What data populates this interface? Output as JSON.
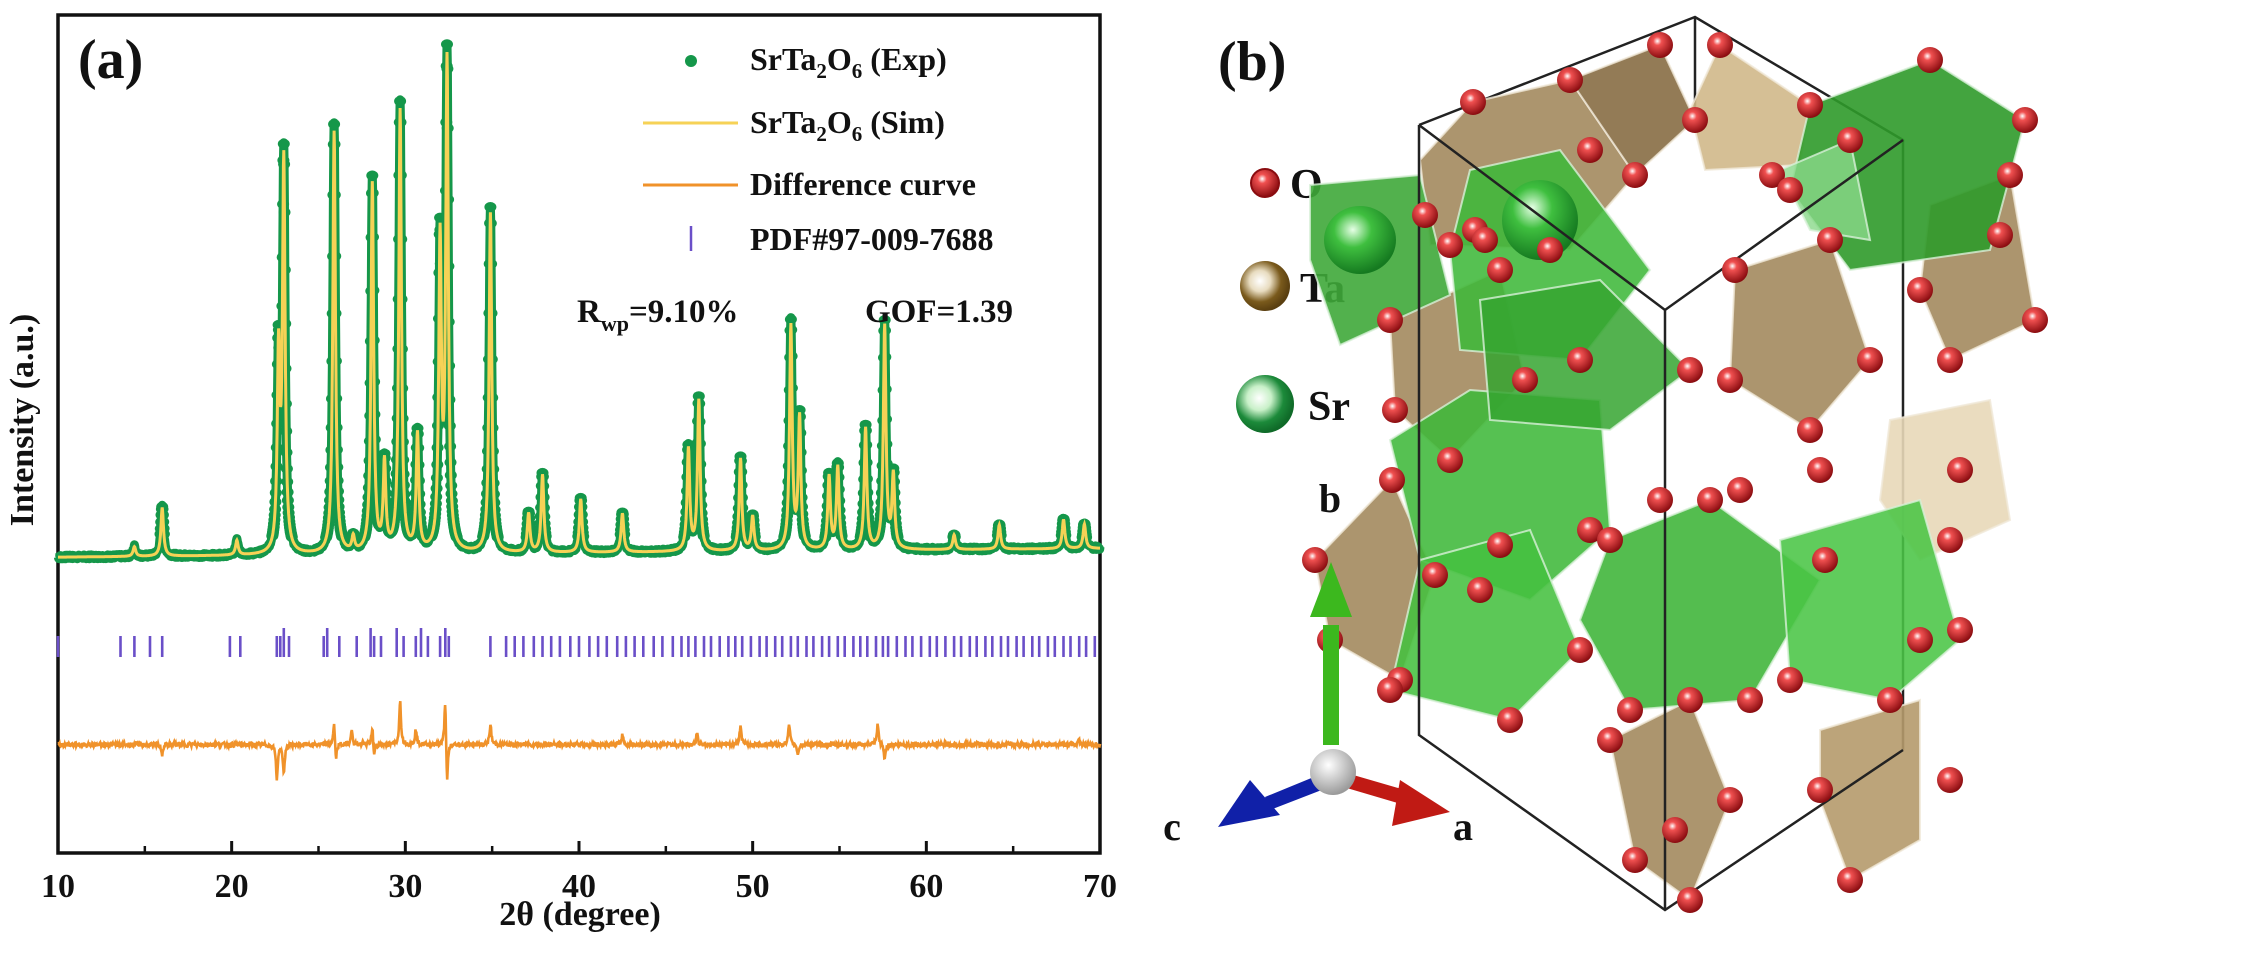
{
  "panel_a": {
    "label": "(a)",
    "rwp_symbol": "R",
    "rwp_sub": "wp",
    "rwp_value": "=9.10%",
    "gof": "GOF=1.39"
  },
  "panel_b": {
    "label": "(b)",
    "legend": [
      {
        "name": "O",
        "color": "#c0181c"
      },
      {
        "name": "Ta",
        "color": "#7a5a1c"
      },
      {
        "name": "Sr",
        "color": "#1c8a3a"
      }
    ],
    "axes": [
      {
        "name": "b",
        "color": "#3cb81e"
      },
      {
        "name": "c",
        "color": "#1020a8"
      },
      {
        "name": "a",
        "color": "#c01a14"
      }
    ],
    "colors": {
      "ta_polyhedron": "#b59a6c",
      "sr_polyhedron": "#3fb83a",
      "oxygen": "#d0161a",
      "cell_edge": "#222222"
    }
  },
  "chart_data": {
    "type": "line",
    "title": "",
    "xlabel": "2θ (degree)",
    "ylabel": "Intensity (a.u.)",
    "xlim": [
      10,
      70
    ],
    "xticks": [
      10,
      20,
      30,
      40,
      50,
      60,
      70
    ],
    "xminor_step": 5,
    "ylim": [
      -60,
      110
    ],
    "yticks_shown": false,
    "grid": false,
    "legend_position": "top-right",
    "legend": [
      {
        "label": "SrTa",
        "sub1": "2",
        "mid": "O",
        "sub2": "6",
        "tail": " (Exp)",
        "marker": "dot",
        "color": "#15974a"
      },
      {
        "label": "SrTa",
        "sub1": "2",
        "mid": "O",
        "sub2": "6",
        "tail": " (Sim)",
        "marker": "line",
        "color": "#f6d256"
      },
      {
        "label": "Difference curve",
        "marker": "line",
        "color": "#f0922a"
      },
      {
        "label": "PDF#97-009-7688",
        "marker": "tick",
        "color": "#6a4fc8"
      }
    ],
    "series": [
      {
        "name": "SrTa2O6 (Exp)",
        "style": "dots",
        "color": "#15974a",
        "baseline": 0,
        "baseline_slope_per_deg": 0.03,
        "peaks": [
          {
            "x": 14.4,
            "h": 2
          },
          {
            "x": 16.0,
            "h": 10
          },
          {
            "x": 20.3,
            "h": 3
          },
          {
            "x": 22.7,
            "h": 40
          },
          {
            "x": 23.0,
            "h": 80
          },
          {
            "x": 25.9,
            "h": 87
          },
          {
            "x": 27.0,
            "h": 3
          },
          {
            "x": 28.1,
            "h": 76
          },
          {
            "x": 28.8,
            "h": 18
          },
          {
            "x": 29.7,
            "h": 91
          },
          {
            "x": 30.7,
            "h": 24
          },
          {
            "x": 32.0,
            "h": 63
          },
          {
            "x": 32.4,
            "h": 100
          },
          {
            "x": 34.9,
            "h": 70
          },
          {
            "x": 37.1,
            "h": 8
          },
          {
            "x": 37.9,
            "h": 16
          },
          {
            "x": 40.1,
            "h": 11
          },
          {
            "x": 42.5,
            "h": 8
          },
          {
            "x": 46.3,
            "h": 21
          },
          {
            "x": 46.9,
            "h": 31
          },
          {
            "x": 49.3,
            "h": 19
          },
          {
            "x": 50.0,
            "h": 7
          },
          {
            "x": 52.2,
            "h": 46
          },
          {
            "x": 52.7,
            "h": 27
          },
          {
            "x": 54.4,
            "h": 15
          },
          {
            "x": 54.9,
            "h": 17
          },
          {
            "x": 56.5,
            "h": 25
          },
          {
            "x": 57.6,
            "h": 46
          },
          {
            "x": 58.1,
            "h": 15
          },
          {
            "x": 61.6,
            "h": 3
          },
          {
            "x": 64.2,
            "h": 5
          },
          {
            "x": 67.9,
            "h": 6
          },
          {
            "x": 69.1,
            "h": 5
          }
        ]
      },
      {
        "name": "SrTa2O6 (Sim)",
        "style": "line",
        "color": "#f6d256",
        "note": "overlays the experimental curve (calculated profile)"
      },
      {
        "name": "Difference curve",
        "style": "line",
        "color": "#f0922a",
        "offset": -38,
        "features": [
          {
            "x": 16.0,
            "d": -2
          },
          {
            "x": 22.6,
            "d": -7
          },
          {
            "x": 23.0,
            "d": -6
          },
          {
            "x": 25.9,
            "d": 5
          },
          {
            "x": 26.0,
            "d": -4
          },
          {
            "x": 26.9,
            "d": 3
          },
          {
            "x": 28.1,
            "d": 4
          },
          {
            "x": 28.2,
            "d": -3
          },
          {
            "x": 29.7,
            "d": 9
          },
          {
            "x": 30.6,
            "d": 3
          },
          {
            "x": 32.3,
            "d": 11
          },
          {
            "x": 32.4,
            "d": -10
          },
          {
            "x": 34.9,
            "d": 4
          },
          {
            "x": 42.5,
            "d": 2
          },
          {
            "x": 46.8,
            "d": 2
          },
          {
            "x": 49.3,
            "d": 4
          },
          {
            "x": 52.1,
            "d": 4
          },
          {
            "x": 52.6,
            "d": -2
          },
          {
            "x": 57.2,
            "d": 4
          },
          {
            "x": 57.6,
            "d": -3
          },
          {
            "x": 68.8,
            "d": 1
          }
        ]
      },
      {
        "name": "PDF#97-009-7688",
        "style": "ticks",
        "color": "#6a4fc8",
        "level": -18,
        "positions": [
          10.0,
          13.6,
          14.4,
          15.3,
          16.0,
          19.9,
          20.5,
          22.6,
          22.8,
          23.0,
          23.3,
          25.3,
          25.5,
          26.2,
          27.2,
          28.0,
          28.2,
          28.6,
          29.5,
          29.9,
          30.6,
          30.9,
          31.3,
          32.0,
          32.3,
          32.5,
          34.9,
          35.8,
          36.3,
          36.8,
          37.4,
          37.9,
          38.4,
          38.9,
          39.5,
          40.0,
          40.6,
          41.1,
          41.6,
          42.2,
          42.7,
          43.2,
          43.7,
          44.3,
          44.8,
          45.4,
          45.9,
          46.3,
          46.7,
          47.2,
          47.6,
          48.1,
          48.6,
          49.0,
          49.4,
          49.9,
          50.4,
          50.8,
          51.3,
          51.7,
          52.2,
          52.6,
          53.1,
          53.5,
          54.0,
          54.4,
          54.9,
          55.3,
          55.8,
          56.2,
          56.6,
          57.1,
          57.5,
          57.8,
          58.3,
          58.8,
          59.2,
          59.7,
          60.2,
          60.6,
          61.1,
          61.6,
          62.0,
          62.5,
          62.9,
          63.4,
          63.8,
          64.3,
          64.7,
          65.2,
          65.6,
          66.1,
          66.5,
          67.0,
          67.4,
          67.9,
          68.3,
          68.8,
          69.2,
          69.7
        ]
      }
    ]
  }
}
